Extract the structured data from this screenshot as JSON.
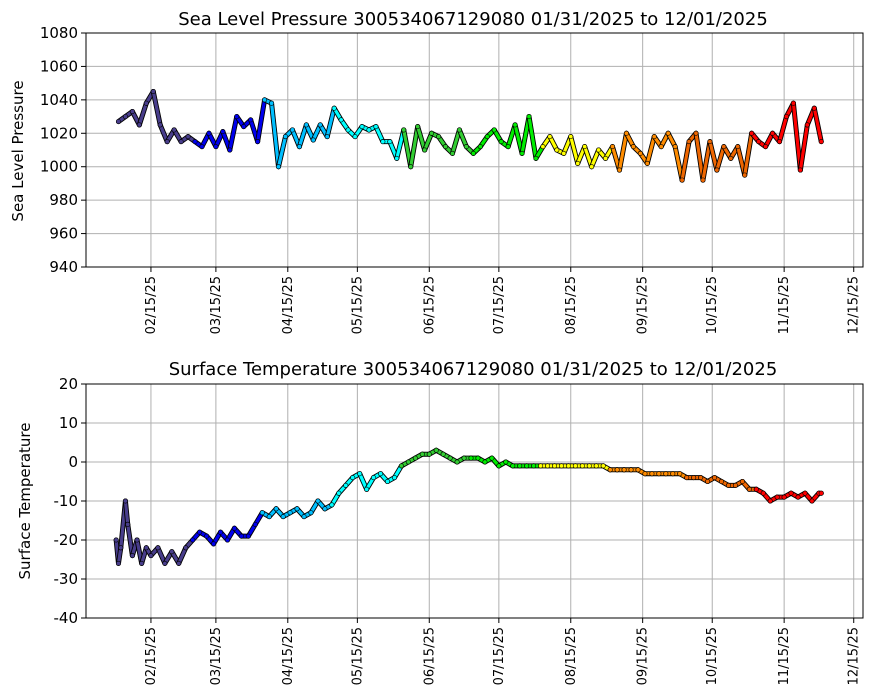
{
  "chart_data": [
    {
      "type": "scatter",
      "title": "Sea Level Pressure 300534067129080  01/31/2025 to 12/01/2025",
      "ylabel": "Sea Level Pressure",
      "xlabel": "",
      "ylim": [
        940,
        1080
      ],
      "yticks": [
        940,
        960,
        980,
        1000,
        1020,
        1040,
        1060,
        1080
      ],
      "xlim": [
        "2025-01-18",
        "2025-12-19"
      ],
      "xtick_labels": [
        "02/15/25",
        "03/15/25",
        "04/15/25",
        "05/15/25",
        "06/15/25",
        "07/15/25",
        "08/15/25",
        "09/15/25",
        "10/15/25",
        "11/15/25",
        "12/15/25"
      ],
      "xtick_dates": [
        "2025-02-15",
        "2025-03-15",
        "2025-04-15",
        "2025-05-15",
        "2025-06-15",
        "2025-07-15",
        "2025-08-15",
        "2025-09-15",
        "2025-10-15",
        "2025-11-15",
        "2025-12-15"
      ],
      "grid": true,
      "color_scale": "time (dark blue → blue → cyan → green → yellow → orange → red)",
      "x": [
        "2025-02-01",
        "2025-02-04",
        "2025-02-07",
        "2025-02-10",
        "2025-02-13",
        "2025-02-16",
        "2025-02-19",
        "2025-02-22",
        "2025-02-25",
        "2025-02-28",
        "2025-03-03",
        "2025-03-06",
        "2025-03-09",
        "2025-03-12",
        "2025-03-15",
        "2025-03-18",
        "2025-03-21",
        "2025-03-24",
        "2025-03-27",
        "2025-03-30",
        "2025-04-02",
        "2025-04-05",
        "2025-04-08",
        "2025-04-11",
        "2025-04-14",
        "2025-04-17",
        "2025-04-20",
        "2025-04-23",
        "2025-04-26",
        "2025-04-29",
        "2025-05-02",
        "2025-05-05",
        "2025-05-08",
        "2025-05-11",
        "2025-05-14",
        "2025-05-17",
        "2025-05-20",
        "2025-05-23",
        "2025-05-26",
        "2025-05-29",
        "2025-06-01",
        "2025-06-04",
        "2025-06-07",
        "2025-06-10",
        "2025-06-13",
        "2025-06-16",
        "2025-06-19",
        "2025-06-22",
        "2025-06-25",
        "2025-06-28",
        "2025-07-01",
        "2025-07-04",
        "2025-07-07",
        "2025-07-10",
        "2025-07-13",
        "2025-07-16",
        "2025-07-19",
        "2025-07-22",
        "2025-07-25",
        "2025-07-28",
        "2025-07-31",
        "2025-08-03",
        "2025-08-06",
        "2025-08-09",
        "2025-08-12",
        "2025-08-15",
        "2025-08-18",
        "2025-08-21",
        "2025-08-24",
        "2025-08-27",
        "2025-08-30",
        "2025-09-02",
        "2025-09-05",
        "2025-09-08",
        "2025-09-11",
        "2025-09-14",
        "2025-09-17",
        "2025-09-20",
        "2025-09-23",
        "2025-09-26",
        "2025-09-29",
        "2025-10-02",
        "2025-10-05",
        "2025-10-08",
        "2025-10-11",
        "2025-10-14",
        "2025-10-17",
        "2025-10-20",
        "2025-10-23",
        "2025-10-26",
        "2025-10-29",
        "2025-11-01",
        "2025-11-04",
        "2025-11-07",
        "2025-11-10",
        "2025-11-13",
        "2025-11-16",
        "2025-11-19",
        "2025-11-22",
        "2025-11-25",
        "2025-11-28",
        "2025-12-01"
      ],
      "y": [
        1027,
        1030,
        1033,
        1025,
        1038,
        1045,
        1025,
        1015,
        1022,
        1015,
        1018,
        1015,
        1012,
        1020,
        1012,
        1021,
        1010,
        1030,
        1024,
        1028,
        1015,
        1040,
        1038,
        1000,
        1018,
        1022,
        1012,
        1025,
        1016,
        1025,
        1018,
        1035,
        1028,
        1022,
        1018,
        1024,
        1022,
        1024,
        1015,
        1015,
        1005,
        1022,
        1000,
        1024,
        1010,
        1020,
        1018,
        1012,
        1008,
        1022,
        1012,
        1008,
        1012,
        1018,
        1022,
        1015,
        1012,
        1025,
        1008,
        1030,
        1005,
        1012,
        1018,
        1010,
        1008,
        1018,
        1002,
        1012,
        1000,
        1010,
        1005,
        1012,
        998,
        1020,
        1012,
        1008,
        1002,
        1018,
        1012,
        1020,
        1012,
        992,
        1015,
        1020,
        992,
        1015,
        998,
        1012,
        1005,
        1012,
        995,
        1020,
        1015,
        1012,
        1020,
        1015,
        1030,
        1038,
        998,
        1025,
        1035,
        1015
      ]
    },
    {
      "type": "scatter",
      "title": "Surface Temperature 300534067129080  01/31/2025 to 12/01/2025",
      "ylabel": "Surface Temperature",
      "xlabel": "",
      "ylim": [
        -40,
        20
      ],
      "yticks": [
        -40,
        -30,
        -20,
        -10,
        0,
        10,
        20
      ],
      "xlim": [
        "2025-01-18",
        "2025-12-19"
      ],
      "xtick_labels": [
        "02/15/25",
        "03/15/25",
        "04/15/25",
        "05/15/25",
        "06/15/25",
        "07/15/25",
        "08/15/25",
        "09/15/25",
        "10/15/25",
        "11/15/25",
        "12/15/25"
      ],
      "xtick_dates": [
        "2025-02-15",
        "2025-03-15",
        "2025-04-15",
        "2025-05-15",
        "2025-06-15",
        "2025-07-15",
        "2025-08-15",
        "2025-09-15",
        "2025-10-15",
        "2025-11-15",
        "2025-12-15"
      ],
      "grid": true,
      "color_scale": "time (dark blue → blue → cyan → green → yellow → orange → red)",
      "x": [
        "2025-01-31",
        "2025-02-01",
        "2025-02-02",
        "2025-02-04",
        "2025-02-05",
        "2025-02-07",
        "2025-02-09",
        "2025-02-11",
        "2025-02-13",
        "2025-02-15",
        "2025-02-18",
        "2025-02-21",
        "2025-02-24",
        "2025-02-27",
        "2025-03-02",
        "2025-03-05",
        "2025-03-08",
        "2025-03-11",
        "2025-03-14",
        "2025-03-17",
        "2025-03-20",
        "2025-03-23",
        "2025-03-26",
        "2025-03-29",
        "2025-04-01",
        "2025-04-04",
        "2025-04-07",
        "2025-04-10",
        "2025-04-13",
        "2025-04-16",
        "2025-04-19",
        "2025-04-22",
        "2025-04-25",
        "2025-04-28",
        "2025-05-01",
        "2025-05-04",
        "2025-05-07",
        "2025-05-10",
        "2025-05-13",
        "2025-05-16",
        "2025-05-19",
        "2025-05-22",
        "2025-05-25",
        "2025-05-28",
        "2025-05-31",
        "2025-06-03",
        "2025-06-06",
        "2025-06-09",
        "2025-06-12",
        "2025-06-15",
        "2025-06-18",
        "2025-06-21",
        "2025-06-24",
        "2025-06-27",
        "2025-06-30",
        "2025-07-03",
        "2025-07-06",
        "2025-07-09",
        "2025-07-12",
        "2025-07-15",
        "2025-07-18",
        "2025-07-21",
        "2025-07-24",
        "2025-07-27",
        "2025-07-30",
        "2025-08-02",
        "2025-08-05",
        "2025-08-08",
        "2025-08-11",
        "2025-08-14",
        "2025-08-17",
        "2025-08-20",
        "2025-08-23",
        "2025-08-26",
        "2025-08-29",
        "2025-09-01",
        "2025-09-04",
        "2025-09-07",
        "2025-09-10",
        "2025-09-13",
        "2025-09-16",
        "2025-09-19",
        "2025-09-22",
        "2025-09-25",
        "2025-09-28",
        "2025-10-01",
        "2025-10-04",
        "2025-10-07",
        "2025-10-10",
        "2025-10-13",
        "2025-10-16",
        "2025-10-19",
        "2025-10-22",
        "2025-10-25",
        "2025-10-28",
        "2025-10-31",
        "2025-11-03",
        "2025-11-06",
        "2025-11-09",
        "2025-11-12",
        "2025-11-15",
        "2025-11-18",
        "2025-11-21",
        "2025-11-24",
        "2025-11-27",
        "2025-11-30",
        "2025-12-01"
      ],
      "y": [
        -20,
        -26,
        -22,
        -10,
        -16,
        -24,
        -20,
        -26,
        -22,
        -24,
        -22,
        -26,
        -23,
        -26,
        -22,
        -20,
        -18,
        -19,
        -21,
        -18,
        -20,
        -17,
        -19,
        -19,
        -16,
        -13,
        -14,
        -12,
        -14,
        -13,
        -12,
        -14,
        -13,
        -10,
        -12,
        -11,
        -8,
        -6,
        -4,
        -3,
        -7,
        -4,
        -3,
        -5,
        -4,
        -1,
        0,
        1,
        2,
        2,
        3,
        2,
        1,
        0,
        1,
        1,
        1,
        0,
        1,
        -1,
        0,
        -1,
        -1,
        -1,
        -1,
        -1,
        -1,
        -1,
        -1,
        -1,
        -1,
        -1,
        -1,
        -1,
        -1,
        -2,
        -2,
        -2,
        -2,
        -2,
        -3,
        -3,
        -3,
        -3,
        -3,
        -3,
        -4,
        -4,
        -4,
        -5,
        -4,
        -5,
        -6,
        -6,
        -5,
        -7,
        -7,
        -8,
        -10,
        -9,
        -9,
        -8,
        -9,
        -8,
        -10,
        -8,
        -8
      ]
    }
  ]
}
